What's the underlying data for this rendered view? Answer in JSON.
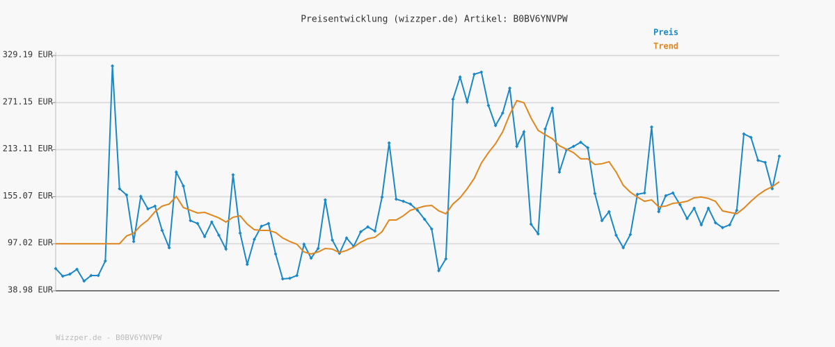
{
  "chart_data": {
    "type": "line",
    "title": "Preisentwicklung (wizzper.de) Artikel: B0BV6YNVPW",
    "footer": "Wizzper.de - B0BV6YNVPW",
    "ylim": [
      38.98,
      329.19
    ],
    "yticks": [
      {
        "value": 38.98,
        "label": "38.98 EUR"
      },
      {
        "value": 97.02,
        "label": "97.02 EUR"
      },
      {
        "value": 155.07,
        "label": "155.07 EUR"
      },
      {
        "value": 213.11,
        "label": "213.11 EUR"
      },
      {
        "value": 271.15,
        "label": "271.15 EUR"
      },
      {
        "value": 329.19,
        "label": "329.19 EUR"
      }
    ],
    "grid": true,
    "legend": "top-right",
    "series": [
      {
        "name": "Preis",
        "color": "#1a87c6",
        "markers": true,
        "values": [
          66.4,
          57.0,
          59.5,
          65.5,
          51.0,
          57.8,
          57.8,
          75.8,
          316.4,
          164.8,
          157.1,
          99.8,
          155.4,
          140.0,
          143.4,
          113.5,
          92.1,
          185.4,
          168.3,
          125.5,
          122.0,
          105.8,
          123.8,
          107.5,
          90.4,
          182.0,
          110.1,
          71.5,
          102.4,
          118.6,
          122.0,
          84.4,
          53.6,
          54.4,
          57.8,
          96.4,
          79.2,
          91.2,
          151.1,
          101.5,
          85.2,
          104.1,
          93.8,
          111.8,
          117.8,
          112.6,
          154.6,
          221.3,
          152.0,
          149.4,
          146.0,
          138.3,
          127.2,
          115.2,
          63.8,
          78.4,
          275.3,
          302.7,
          271.9,
          306.1,
          308.7,
          267.6,
          242.8,
          258.2,
          289.0,
          217.1,
          235.0,
          121.2,
          109.2,
          238.5,
          264.2,
          185.4,
          212.8,
          217.1,
          222.2,
          215.4,
          158.9,
          125.5,
          136.6,
          107.5,
          92.1,
          108.3,
          158.0,
          159.7,
          241.0,
          136.6,
          156.3,
          159.7,
          145.2,
          128.0,
          140.9,
          120.3,
          140.9,
          122.9,
          116.9,
          120.3,
          138.3,
          232.5,
          228.2,
          199.9,
          197.4,
          164.8,
          205.1
        ]
      },
      {
        "name": "Trend",
        "color": "#e0861c",
        "markers": false,
        "values": [
          97.02,
          97.02,
          97.02,
          97.02,
          97.02,
          97.02,
          97.02,
          97.02,
          97.02,
          97.02,
          106.6,
          110.1,
          119.5,
          126.3,
          136.6,
          143.4,
          146.0,
          155.4,
          141.7,
          138.3,
          134.9,
          135.7,
          132.3,
          128.9,
          123.8,
          129.7,
          131.5,
          121.2,
          114.3,
          113.5,
          113.5,
          110.9,
          104.1,
          99.8,
          96.4,
          86.9,
          84.4,
          86.9,
          91.2,
          90.4,
          86.1,
          88.7,
          92.9,
          98.9,
          103.2,
          104.9,
          111.8,
          126.3,
          126.3,
          131.5,
          138.3,
          140.9,
          143.4,
          144.3,
          137.5,
          134.0,
          146.0,
          153.7,
          164.8,
          177.7,
          196.5,
          209.4,
          220.5,
          235.0,
          256.4,
          273.6,
          271.0,
          252.2,
          236.8,
          231.6,
          226.5,
          217.9,
          213.6,
          209.4,
          201.7,
          201.7,
          194.8,
          195.7,
          198.2,
          185.4,
          169.1,
          160.6,
          154.6,
          149.4,
          151.1,
          142.6,
          143.4,
          146.9,
          147.7,
          149.4,
          153.7,
          154.6,
          152.9,
          149.4,
          137.5,
          135.7,
          134.0,
          140.9,
          149.4,
          157.1,
          163.1,
          167.4,
          173.4
        ]
      }
    ]
  }
}
